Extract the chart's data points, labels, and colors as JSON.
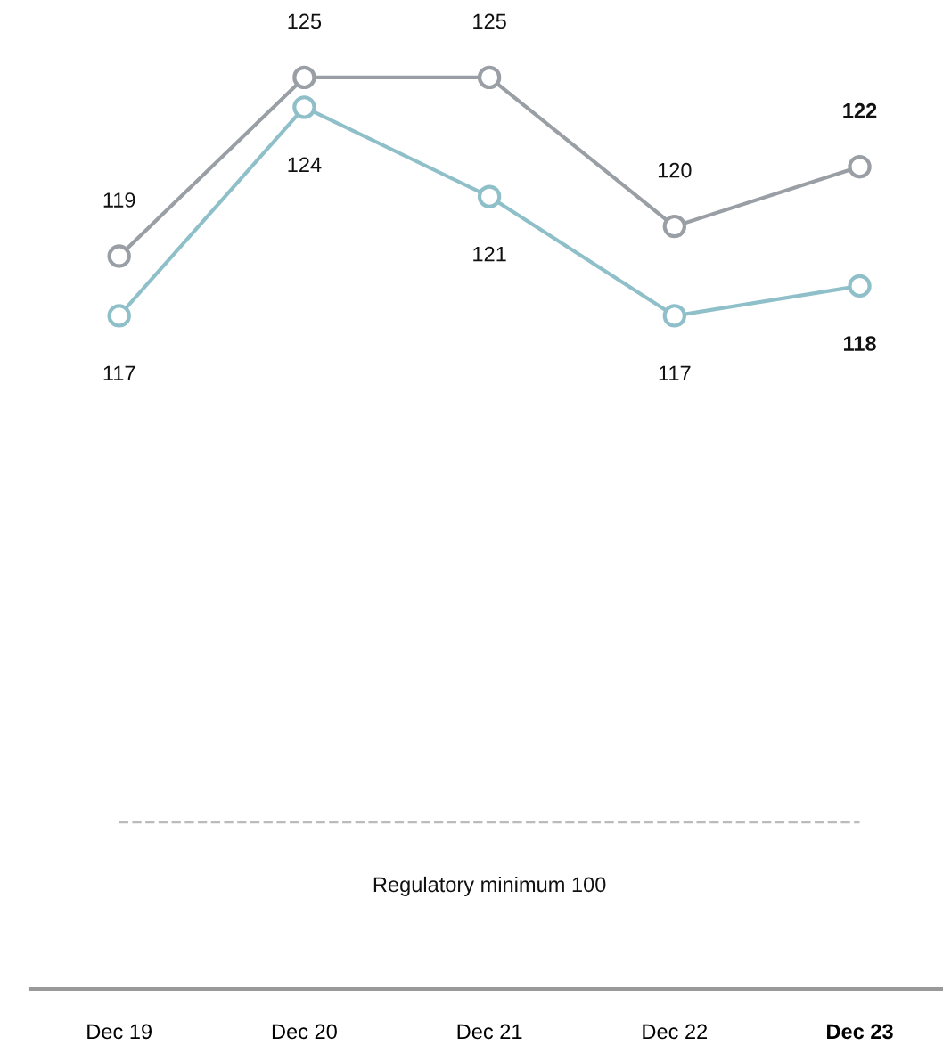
{
  "chart_data": {
    "type": "line",
    "categories": [
      "Dec 19",
      "Dec 20",
      "Dec 21",
      "Dec 22",
      "Dec 23"
    ],
    "series": [
      {
        "color": "#9a9fa5",
        "values": [
          119,
          125,
          125,
          120,
          122
        ]
      },
      {
        "color": "#8fc0c9",
        "values": [
          117,
          124,
          121,
          117,
          118
        ]
      }
    ],
    "tick_labels": "x",
    "marker": "circle",
    "line_style": "solid",
    "data_labels": true,
    "ref_lines": [
      {
        "axis": "y",
        "value": 100,
        "label": "Regulatory minimum 100",
        "color": "#bbbbbb",
        "line_style": "dashed"
      }
    ]
  }
}
